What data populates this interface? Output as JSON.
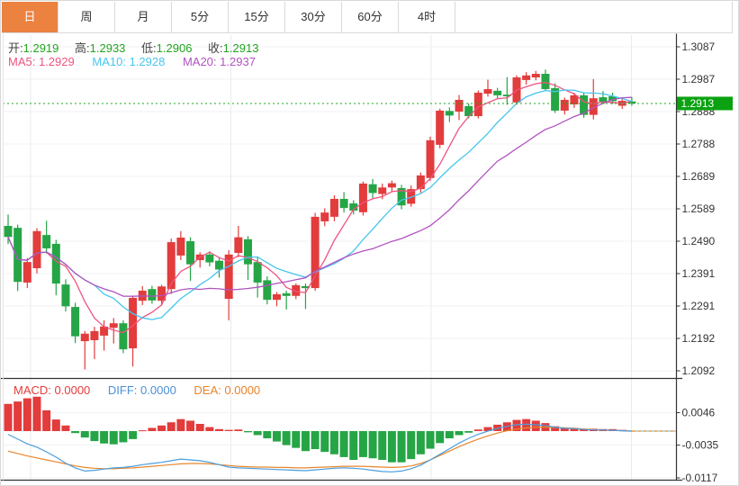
{
  "tabs": {
    "items": [
      {
        "label": "日",
        "active": true
      },
      {
        "label": "周",
        "active": false
      },
      {
        "label": "月",
        "active": false
      },
      {
        "label": "5分",
        "active": false
      },
      {
        "label": "15分",
        "active": false
      },
      {
        "label": "30分",
        "active": false
      },
      {
        "label": "60分",
        "active": false
      },
      {
        "label": "4时",
        "active": false
      }
    ]
  },
  "legend": {
    "ohlc": [
      {
        "label": "开:",
        "value": "1.2919"
      },
      {
        "label": "高:",
        "value": "1.2933"
      },
      {
        "label": "低:",
        "value": "1.2906"
      },
      {
        "label": "收:",
        "value": "1.2913"
      }
    ],
    "ma": [
      {
        "label": "MA5:",
        "value": "1.2929"
      },
      {
        "label": "MA10:",
        "value": "1.2928"
      },
      {
        "label": "MA20:",
        "value": "1.2937"
      }
    ],
    "macd": [
      {
        "label": "MACD:",
        "value": "0.0000"
      },
      {
        "label": "DIFF:",
        "value": "0.0000"
      },
      {
        "label": "DEA:",
        "value": "0.0000"
      }
    ]
  },
  "colors": {
    "up": "#e23c3c",
    "down": "#26a546",
    "ma5": "#ef537e",
    "ma10": "#45c5ec",
    "ma20": "#b153c0",
    "diff": "#4a9ede",
    "dea": "#e8862c",
    "current_price_badge": "#0aa210",
    "current_price_line": "#1ca81c",
    "active_tab": "#ec8240",
    "grid": "#f0f2f6",
    "vgrid": "#e9ebf0",
    "axis_text": "#333333"
  },
  "chart_data": {
    "type": "candlestick_with_macd",
    "timeframe_selected": "日",
    "price_axis": {
      "ticks": [
        "1.3087",
        "1.2987",
        "1.2888",
        "1.2788",
        "1.2689",
        "1.2589",
        "1.2490",
        "1.2391",
        "1.2291",
        "1.2192",
        "1.2092"
      ],
      "max": 1.3087,
      "min": 1.2092,
      "current_price": "1.2913"
    },
    "macd_axis": {
      "ticks": [
        "0.0046",
        "-0.0035",
        "-0.0117"
      ],
      "tick_values": [
        0.0046,
        -0.0035,
        -0.0117
      ]
    },
    "today": {
      "open": 1.2919,
      "high": 1.2933,
      "low": 1.2906,
      "close": 1.2913
    },
    "indicators": {
      "ma5": 1.2929,
      "ma10": 1.2928,
      "ma20": 1.2937,
      "macd": 0.0,
      "diff": 0.0,
      "dea": 0.0
    },
    "candles": [
      [
        1.2537,
        1.2572,
        1.2481,
        1.2503
      ],
      [
        1.2531,
        1.2541,
        1.2337,
        1.2365
      ],
      [
        1.2363,
        1.2438,
        1.2346,
        1.2426
      ],
      [
        1.2407,
        1.253,
        1.2391,
        1.2521
      ],
      [
        1.2509,
        1.2553,
        1.2452,
        1.2468
      ],
      [
        1.2482,
        1.2494,
        1.2324,
        1.236
      ],
      [
        1.2357,
        1.2373,
        1.2274,
        1.229
      ],
      [
        1.2288,
        1.2301,
        1.2177,
        1.2198
      ],
      [
        1.2183,
        1.2214,
        1.2096,
        1.2206
      ],
      [
        1.2186,
        1.2227,
        1.2128,
        1.2214
      ],
      [
        1.22,
        1.2247,
        1.2154,
        1.2228
      ],
      [
        1.2224,
        1.2254,
        1.2176,
        1.2238
      ],
      [
        1.2238,
        1.2247,
        1.2146,
        1.2158
      ],
      [
        1.2161,
        1.2323,
        1.2105,
        1.2316
      ],
      [
        1.2307,
        1.2352,
        1.2294,
        1.2338
      ],
      [
        1.2343,
        1.2353,
        1.2298,
        1.2308
      ],
      [
        1.2307,
        1.2356,
        1.2293,
        1.2351
      ],
      [
        1.2343,
        1.2498,
        1.2328,
        1.2487
      ],
      [
        1.2446,
        1.2521,
        1.2432,
        1.2501
      ],
      [
        1.249,
        1.2502,
        1.2368,
        1.2419
      ],
      [
        1.2432,
        1.2456,
        1.2409,
        1.2449
      ],
      [
        1.2449,
        1.2459,
        1.2413,
        1.2425
      ],
      [
        1.243,
        1.2441,
        1.2378,
        1.2403
      ],
      [
        1.2313,
        1.2463,
        1.2247,
        1.2449
      ],
      [
        1.2454,
        1.2537,
        1.2441,
        1.2502
      ],
      [
        1.2496,
        1.2506,
        1.2371,
        1.2419
      ],
      [
        1.2426,
        1.2441,
        1.2317,
        1.2363
      ],
      [
        1.237,
        1.2382,
        1.2296,
        1.231
      ],
      [
        1.231,
        1.2334,
        1.229,
        1.2327
      ],
      [
        1.233,
        1.2338,
        1.228,
        1.2322
      ],
      [
        1.2322,
        1.236,
        1.2312,
        1.2355
      ],
      [
        1.2352,
        1.236,
        1.2282,
        1.2346
      ],
      [
        1.2346,
        1.2577,
        1.2338,
        1.2565
      ],
      [
        1.2551,
        1.2591,
        1.2536,
        1.2578
      ],
      [
        1.2565,
        1.2631,
        1.2551,
        1.262
      ],
      [
        1.262,
        1.2641,
        1.2578,
        1.2592
      ],
      [
        1.2606,
        1.2616,
        1.2572,
        1.2584
      ],
      [
        1.2579,
        1.2673,
        1.2569,
        1.2667
      ],
      [
        1.2665,
        1.2681,
        1.2622,
        1.2638
      ],
      [
        1.2635,
        1.2667,
        1.2619,
        1.2655
      ],
      [
        1.2655,
        1.2676,
        1.2641,
        1.2668
      ],
      [
        1.2653,
        1.2663,
        1.2588,
        1.26
      ],
      [
        1.2605,
        1.2661,
        1.2596,
        1.265
      ],
      [
        1.265,
        1.2701,
        1.2639,
        1.2692
      ],
      [
        1.2684,
        1.2811,
        1.2676,
        1.28
      ],
      [
        1.2786,
        1.2897,
        1.2775,
        1.2891
      ],
      [
        1.289,
        1.2901,
        1.2856,
        1.2876
      ],
      [
        1.2888,
        1.2939,
        1.2862,
        1.2924
      ],
      [
        1.2905,
        1.2913,
        1.2867,
        1.2874
      ],
      [
        1.2874,
        1.2953,
        1.2867,
        1.2946
      ],
      [
        1.2943,
        1.2986,
        1.2934,
        1.2957
      ],
      [
        1.2952,
        1.2961,
        1.2929,
        1.2938
      ],
      [
        1.294,
        1.2994,
        1.2909,
        1.2935
      ],
      [
        1.2916,
        1.2999,
        1.2909,
        1.2993
      ],
      [
        1.2985,
        1.3009,
        1.2971,
        1.2999
      ],
      [
        1.2993,
        1.3013,
        1.2984,
        1.3004
      ],
      [
        1.3004,
        1.3017,
        1.2951,
        1.2957
      ],
      [
        1.296,
        1.2975,
        1.2884,
        1.2891
      ],
      [
        1.2891,
        1.2931,
        1.2879,
        1.2924
      ],
      [
        1.291,
        1.2946,
        1.2899,
        1.2938
      ],
      [
        1.2938,
        1.2946,
        1.2869,
        1.2878
      ],
      [
        1.2878,
        1.2988,
        1.2864,
        1.2929
      ],
      [
        1.2932,
        1.2951,
        1.2911,
        1.2918
      ],
      [
        1.2935,
        1.2946,
        1.2911,
        1.292
      ],
      [
        1.2906,
        1.2929,
        1.2896,
        1.2921
      ],
      [
        1.2919,
        1.2933,
        1.2906,
        1.2913
      ]
    ],
    "macd_hist": [
      0.0068,
      0.0074,
      0.0082,
      0.0086,
      0.0052,
      0.0029,
      0.0014,
      -0.0005,
      -0.0016,
      -0.0025,
      -0.0031,
      -0.0033,
      -0.0028,
      -0.002,
      0.0002,
      0.0008,
      0.0014,
      0.0022,
      0.003,
      0.0026,
      0.0018,
      0.001,
      0.0005,
      0.0003,
      0.0004,
      -0.0003,
      -0.001,
      -0.0018,
      -0.0026,
      -0.0035,
      -0.0042,
      -0.005,
      -0.0045,
      -0.0052,
      -0.0058,
      -0.0065,
      -0.0072,
      -0.0065,
      -0.0068,
      -0.0072,
      -0.0078,
      -0.0078,
      -0.007,
      -0.0058,
      -0.0044,
      -0.003,
      -0.0018,
      -0.001,
      -0.0004,
      0.0004,
      0.001,
      0.0016,
      0.0022,
      0.0028,
      0.003,
      0.0026,
      0.002,
      0.0012,
      0.0008,
      0.0008,
      0.0006,
      0.0006,
      0.0005,
      0.0005,
      0.0003,
      0.0001
    ],
    "diff_line": [
      -0.0008,
      -0.002,
      -0.0032,
      -0.004,
      -0.0052,
      -0.0065,
      -0.008,
      -0.0092,
      -0.01,
      -0.0098,
      -0.0095,
      -0.0092,
      -0.0091,
      -0.0088,
      -0.0084,
      -0.0081,
      -0.0078,
      -0.0074,
      -0.007,
      -0.0072,
      -0.0074,
      -0.0078,
      -0.0084,
      -0.009,
      -0.0092,
      -0.0093,
      -0.0094,
      -0.0095,
      -0.0096,
      -0.0097,
      -0.0098,
      -0.0099,
      -0.0097,
      -0.0095,
      -0.0093,
      -0.0092,
      -0.0093,
      -0.0095,
      -0.0098,
      -0.0101,
      -0.0102,
      -0.01,
      -0.0094,
      -0.0085,
      -0.0072,
      -0.0058,
      -0.0044,
      -0.003,
      -0.0018,
      -0.0008,
      0.0,
      0.0007,
      0.0012,
      0.0016,
      0.0017,
      0.0016,
      0.0014,
      0.001,
      0.0007,
      0.0006,
      0.0004,
      0.0003,
      0.0003,
      0.0002,
      0.0001,
      0.0
    ],
    "dea_line": [
      -0.005,
      -0.0056,
      -0.0062,
      -0.0067,
      -0.0072,
      -0.0077,
      -0.0082,
      -0.0087,
      -0.0091,
      -0.0093,
      -0.0094,
      -0.0094,
      -0.0093,
      -0.0092,
      -0.009,
      -0.0088,
      -0.0086,
      -0.0084,
      -0.0082,
      -0.0081,
      -0.0081,
      -0.0082,
      -0.0084,
      -0.0086,
      -0.0088,
      -0.0089,
      -0.009,
      -0.009,
      -0.0091,
      -0.0091,
      -0.0092,
      -0.0092,
      -0.0091,
      -0.009,
      -0.0089,
      -0.0088,
      -0.0088,
      -0.0088,
      -0.0089,
      -0.009,
      -0.0091,
      -0.009,
      -0.0087,
      -0.0081,
      -0.0072,
      -0.0061,
      -0.005,
      -0.0039,
      -0.0029,
      -0.002,
      -0.0012,
      -0.0005,
      0.0001,
      0.0005,
      0.0008,
      0.001,
      0.001,
      0.0009,
      0.0008,
      0.0007,
      0.0005,
      0.0004,
      0.0003,
      0.0002,
      0.0001,
      0.0
    ]
  }
}
